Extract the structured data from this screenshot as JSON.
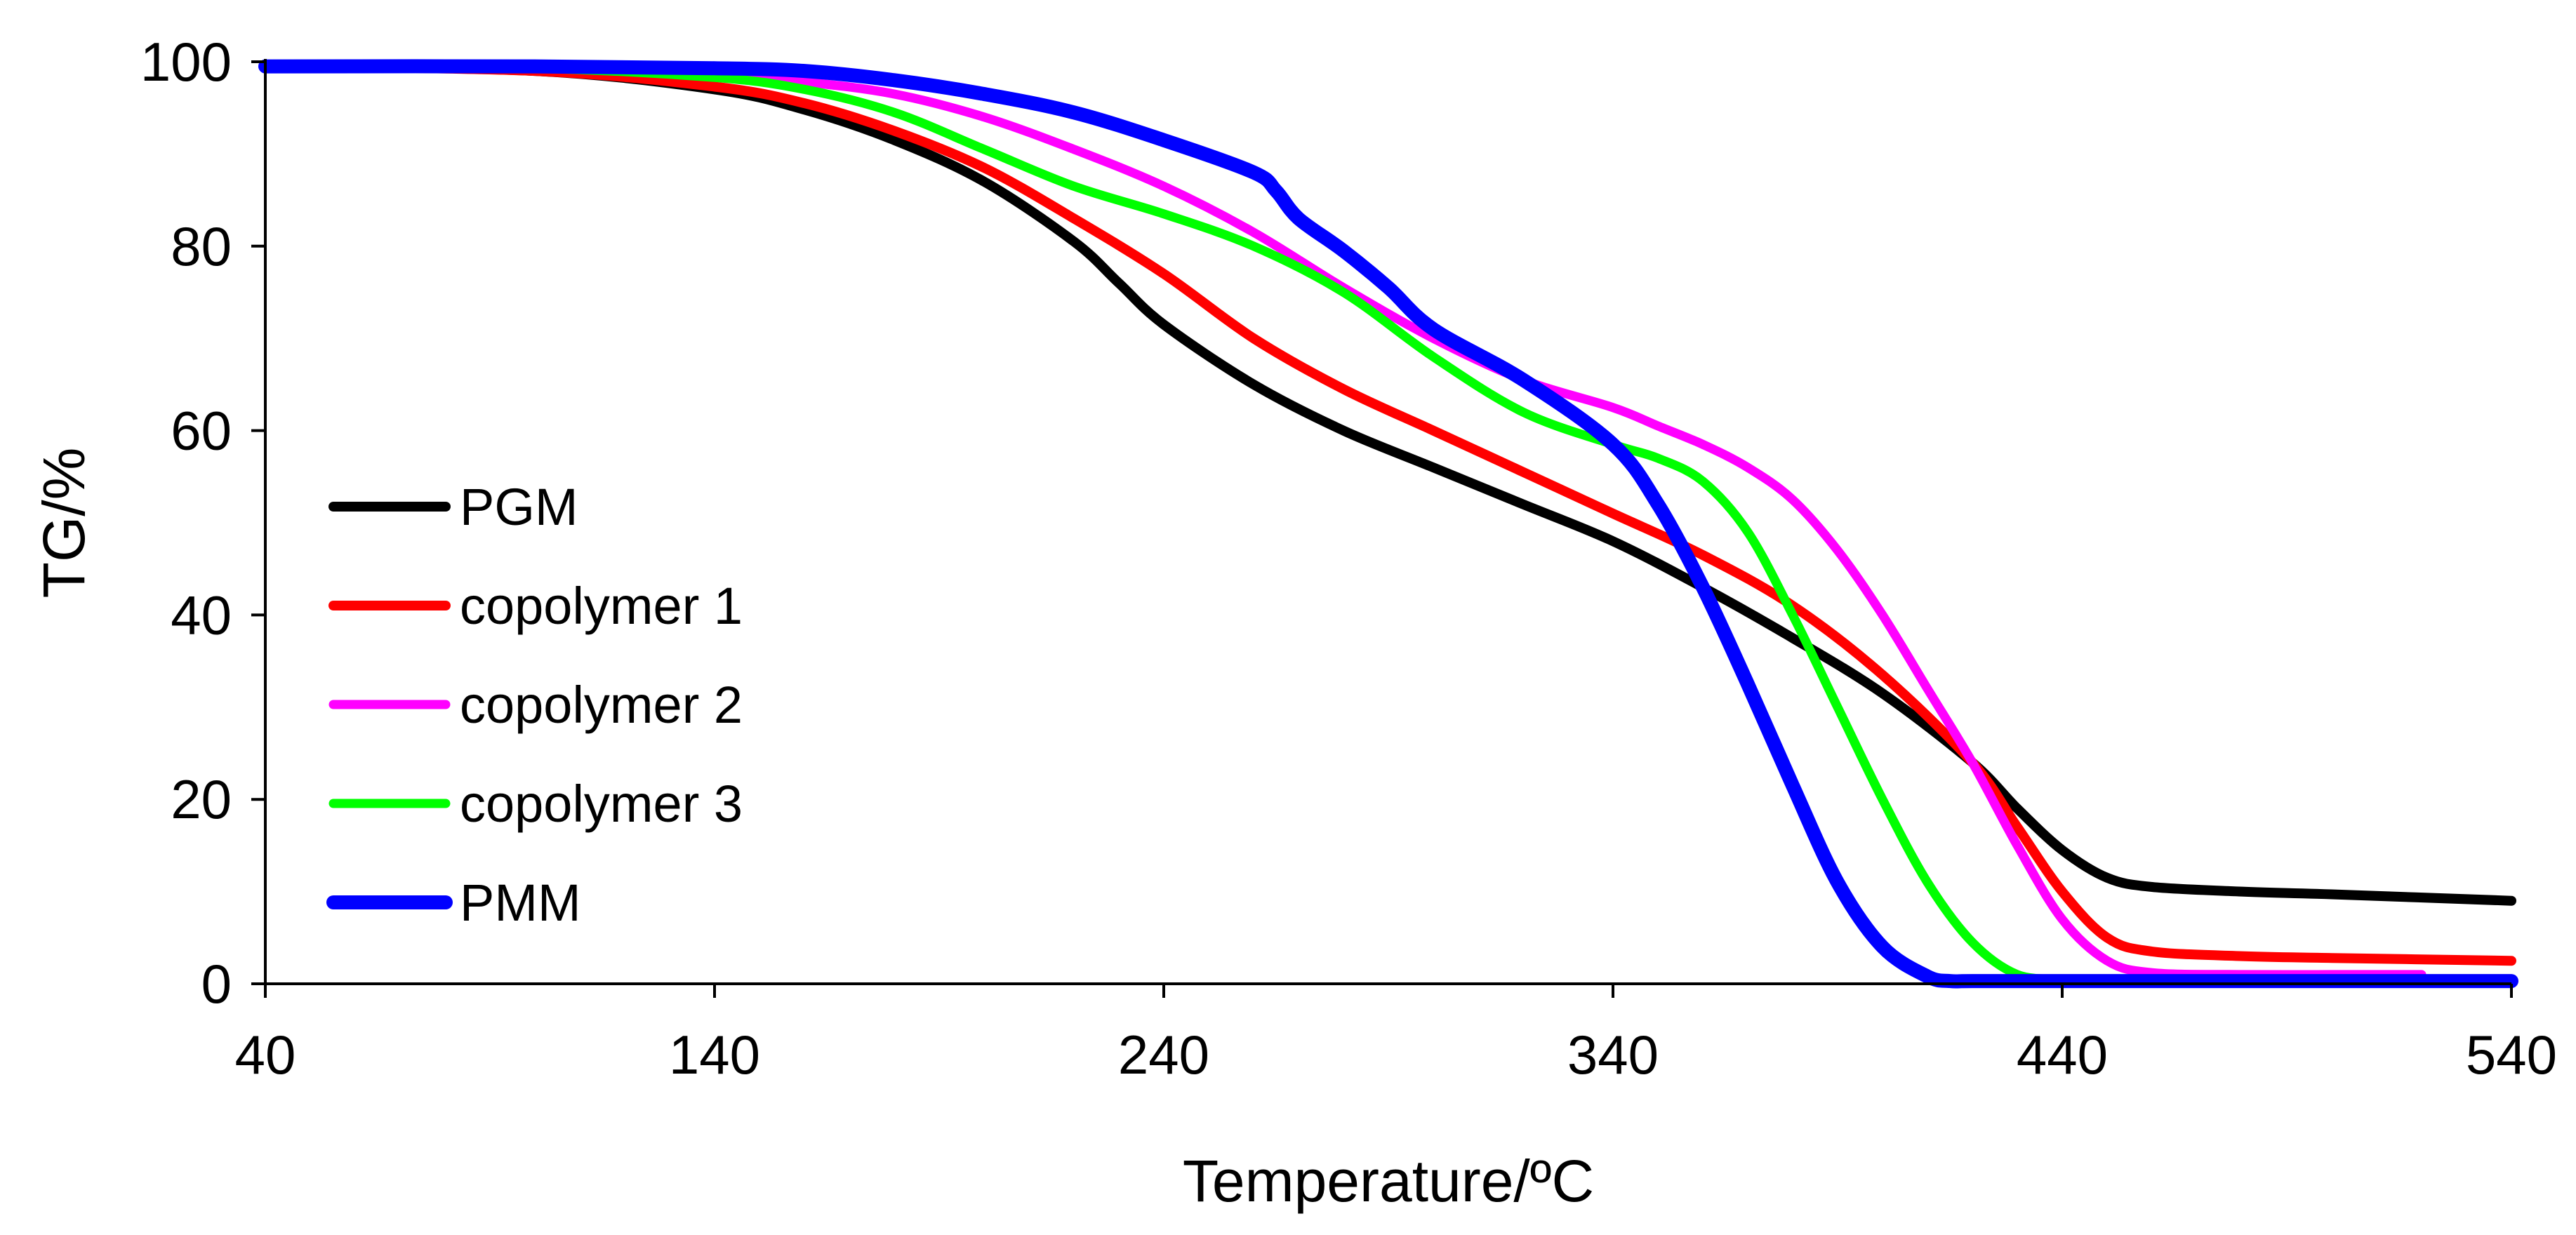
{
  "chart_data": {
    "type": "line",
    "title": "",
    "xlabel": "Temperature/ºC",
    "ylabel": "TG/%",
    "xlim": [
      40,
      540
    ],
    "ylim": [
      0,
      100
    ],
    "xticks": [
      40,
      140,
      240,
      340,
      440,
      540
    ],
    "yticks": [
      0,
      20,
      40,
      60,
      80,
      100
    ],
    "xtick_labels": [
      "40",
      "140",
      "240",
      "340",
      "440",
      "540"
    ],
    "ytick_labels": [
      "0",
      "20",
      "40",
      "60",
      "80",
      "100"
    ],
    "grid": false,
    "legend_position": "left",
    "series": [
      {
        "name": "PGM",
        "color": "#000000",
        "x": [
          40,
          100,
          140,
          160,
          180,
          200,
          220,
          230,
          240,
          260,
          280,
          300,
          320,
          340,
          360,
          380,
          400,
          420,
          430,
          440,
          450,
          460,
          480,
          500,
          540
        ],
        "y": [
          99.5,
          99.0,
          97.0,
          94.8,
          91.5,
          87.0,
          80.5,
          76.0,
          71.5,
          65.0,
          60.0,
          56.0,
          52.0,
          48.0,
          43.0,
          37.5,
          31.5,
          24.0,
          19.0,
          14.5,
          11.5,
          10.5,
          10.0,
          9.7,
          9.0
        ]
      },
      {
        "name": "copolymer 1",
        "color": "#ff0000",
        "x": [
          40,
          100,
          140,
          160,
          180,
          200,
          220,
          240,
          260,
          280,
          300,
          320,
          340,
          360,
          380,
          400,
          420,
          430,
          440,
          450,
          460,
          480,
          500,
          540
        ],
        "y": [
          99.5,
          99.0,
          97.3,
          95.5,
          92.5,
          88.5,
          83.0,
          77.0,
          70.0,
          64.5,
          60.0,
          55.5,
          51.0,
          46.5,
          41.0,
          33.5,
          24.0,
          17.0,
          10.0,
          5.0,
          3.5,
          3.0,
          2.8,
          2.5
        ]
      },
      {
        "name": "copolymer 2",
        "color": "#ff00ff",
        "x": [
          40,
          100,
          140,
          160,
          180,
          200,
          220,
          240,
          260,
          280,
          300,
          320,
          340,
          350,
          360,
          370,
          380,
          390,
          400,
          410,
          420,
          430,
          440,
          450,
          460,
          480,
          500,
          520
        ],
        "y": [
          99.5,
          99.3,
          98.5,
          97.8,
          96.5,
          94.0,
          90.5,
          86.5,
          81.5,
          75.5,
          70.0,
          65.5,
          62.5,
          60.5,
          58.5,
          56.0,
          52.5,
          47.0,
          40.0,
          32.0,
          24.0,
          15.0,
          7.0,
          2.5,
          1.2,
          1.0,
          1.0,
          1.0
        ]
      },
      {
        "name": "copolymer 3",
        "color": "#00ff00",
        "x": [
          40,
          100,
          140,
          160,
          180,
          200,
          220,
          240,
          260,
          280,
          300,
          320,
          340,
          350,
          360,
          370,
          380,
          390,
          400,
          410,
          420,
          430,
          440
        ],
        "y": [
          99.5,
          99.3,
          98.3,
          97.0,
          94.5,
          90.5,
          86.5,
          83.5,
          80.0,
          75.0,
          68.0,
          62.0,
          58.5,
          57.0,
          54.5,
          49.0,
          40.0,
          30.0,
          20.0,
          11.0,
          4.5,
          1.0,
          0.5
        ]
      },
      {
        "name": "PMM",
        "color": "#0000ff",
        "x": [
          40,
          100,
          140,
          160,
          180,
          200,
          220,
          240,
          260,
          265,
          270,
          280,
          290,
          300,
          320,
          340,
          350,
          360,
          370,
          380,
          390,
          400,
          410,
          415,
          420,
          440,
          460,
          500,
          540
        ],
        "y": [
          99.5,
          99.5,
          99.3,
          99.0,
          98.0,
          96.5,
          94.5,
          91.5,
          88.0,
          86.0,
          83.0,
          79.5,
          75.5,
          71.0,
          65.5,
          58.5,
          52.0,
          43.0,
          32.5,
          21.5,
          11.0,
          4.0,
          0.8,
          0.3,
          0.3,
          0.3,
          0.3,
          0.3,
          0.3
        ]
      }
    ]
  }
}
